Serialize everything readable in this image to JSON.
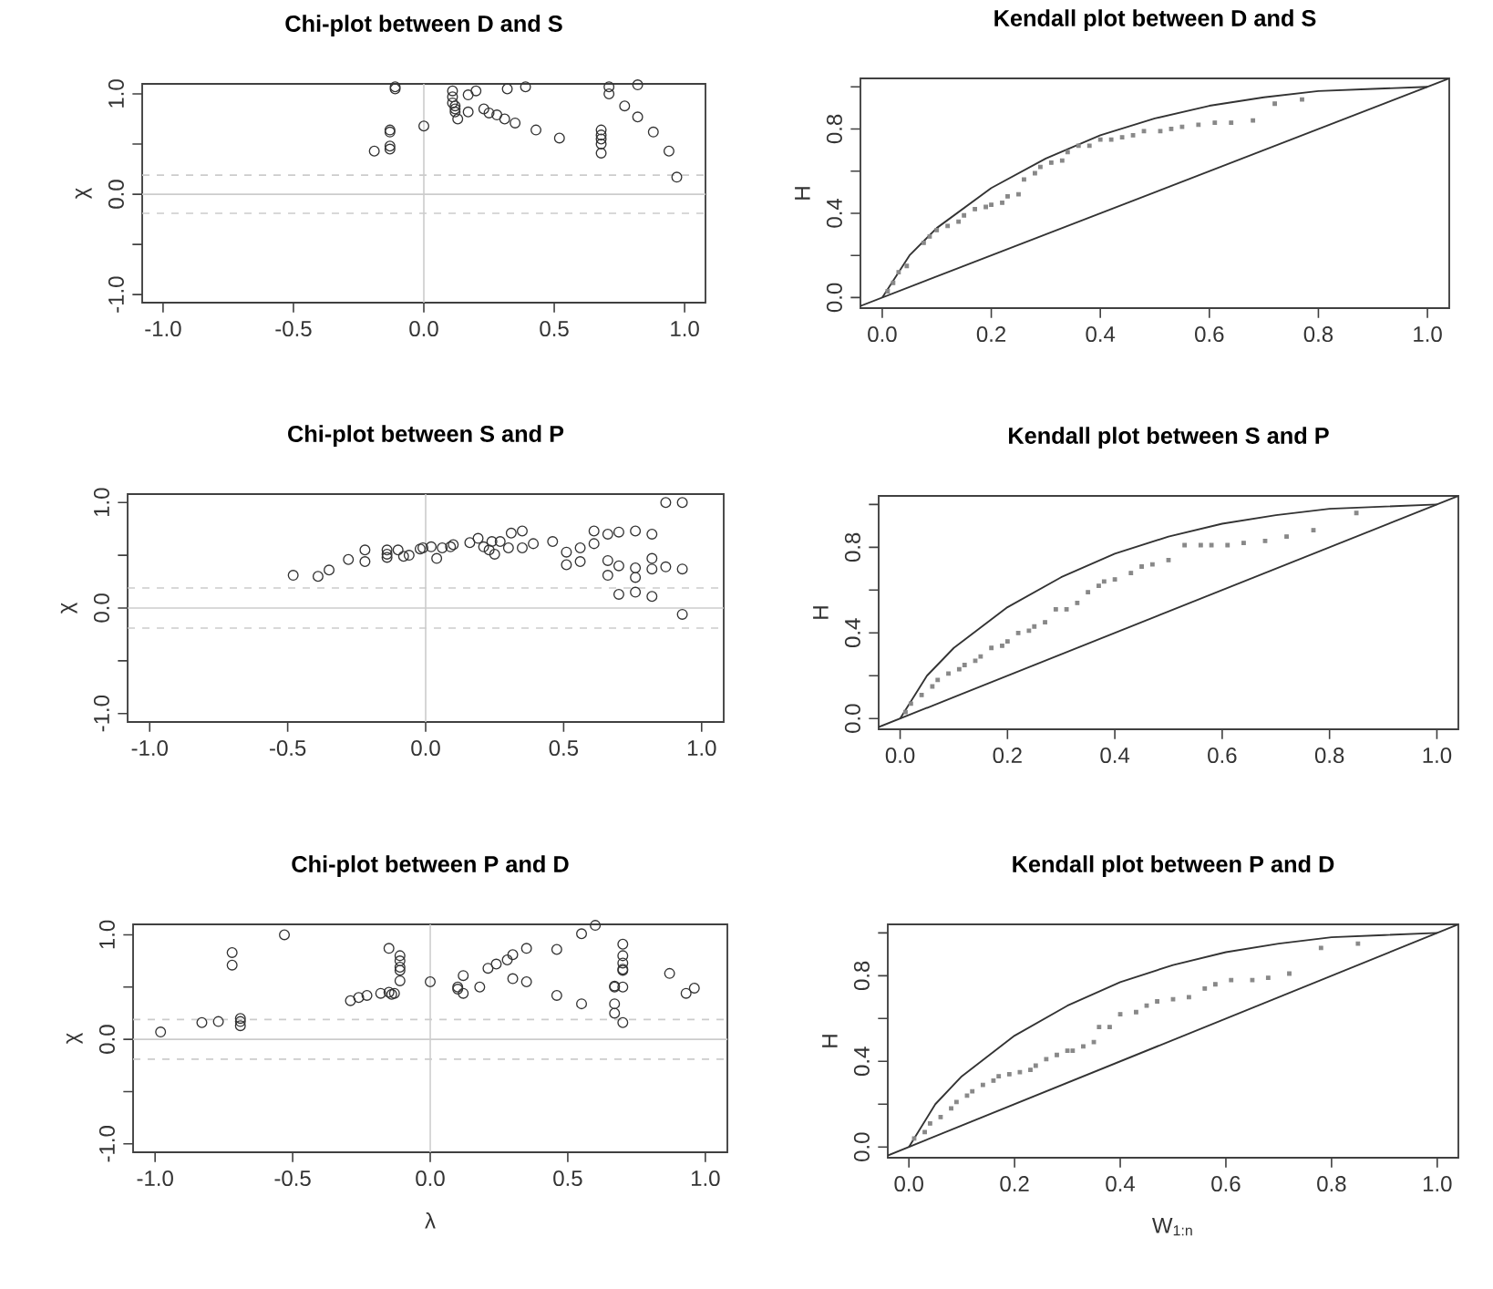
{
  "chart_data": [
    {
      "type": "scatter",
      "title": "Chi-plot between D and S",
      "ylabel": "χ",
      "xlim": [
        -1.08,
        1.08
      ],
      "ylim": [
        -1.08,
        1.1
      ],
      "xticks": [
        {
          "value": -1,
          "label": "-1.0"
        },
        {
          "value": -0.5,
          "label": "-0.5"
        },
        {
          "value": 0,
          "label": "0.0"
        },
        {
          "value": 0.5,
          "label": "0.5"
        },
        {
          "value": 1,
          "label": "1.0"
        }
      ],
      "yticks": [
        {
          "value": -1,
          "label": "-1.0"
        },
        {
          "value": -0.5,
          "label": null
        },
        {
          "value": 0,
          "label": "0.0"
        },
        {
          "value": 0.5,
          "label": null
        },
        {
          "value": 1,
          "label": "1.0"
        }
      ],
      "marker": "circle",
      "ref_lines": [
        {
          "axis": "y",
          "value": 0,
          "color": "#cccccc",
          "line_style": "solid"
        },
        {
          "axis": "y",
          "value": 0.19,
          "color": "#cccccc",
          "line_style": "dashed"
        },
        {
          "axis": "y",
          "value": -0.19,
          "color": "#cccccc",
          "line_style": "dashed"
        },
        {
          "axis": "x",
          "value": 0,
          "color": "#cccccc",
          "line_style": "solid"
        }
      ],
      "series": [
        {
          "color": "#333333",
          "x": [
            -0.19,
            -0.13,
            -0.13,
            -0.13,
            -0.13,
            -0.11,
            -0.11,
            0.0,
            0.11,
            0.11,
            0.11,
            0.12,
            0.12,
            0.12,
            0.13,
            0.17,
            0.17,
            0.2,
            0.23,
            0.25,
            0.28,
            0.31,
            0.35,
            0.32,
            0.39,
            0.43,
            0.52,
            0.68,
            0.68,
            0.68,
            0.68,
            0.68,
            0.71,
            0.71,
            0.77,
            0.82,
            0.82,
            0.88,
            0.94,
            0.97
          ],
          "values": [
            0.43,
            0.45,
            0.48,
            0.62,
            0.64,
            1.05,
            1.07,
            0.68,
            1.03,
            0.97,
            0.91,
            0.88,
            0.85,
            0.82,
            0.75,
            0.82,
            0.99,
            1.03,
            0.85,
            0.81,
            0.79,
            0.75,
            0.71,
            1.05,
            1.07,
            0.64,
            0.56,
            0.64,
            0.59,
            0.55,
            0.5,
            0.41,
            1.0,
            1.07,
            0.88,
            0.77,
            1.09,
            0.62,
            0.43,
            0.17
          ]
        }
      ]
    },
    {
      "type": "scatter",
      "title": "Kendall plot between D and S",
      "ylabel": "H",
      "xlim": [
        -0.04,
        1.04
      ],
      "ylim": [
        -0.05,
        1.04
      ],
      "xticks": [
        {
          "value": 0,
          "label": "0.0"
        },
        {
          "value": 0.2,
          "label": "0.2"
        },
        {
          "value": 0.4,
          "label": "0.4"
        },
        {
          "value": 0.6,
          "label": "0.6"
        },
        {
          "value": 0.8,
          "label": "0.8"
        },
        {
          "value": 1,
          "label": "1.0"
        }
      ],
      "yticks": [
        {
          "value": 0,
          "label": "0.0"
        },
        {
          "value": 0.2,
          "label": null
        },
        {
          "value": 0.4,
          "label": "0.4"
        },
        {
          "value": 0.6,
          "label": null
        },
        {
          "value": 0.8,
          "label": "0.8"
        },
        {
          "value": 1,
          "label": null
        }
      ],
      "series": [
        {
          "type": "line",
          "marker": "none",
          "color": "#333333",
          "x": [
            -0.04,
            1.04
          ],
          "values": [
            -0.04,
            1.04
          ]
        },
        {
          "type": "line",
          "marker": "none",
          "color": "#333333",
          "x": [
            0,
            0.05,
            0.1,
            0.2,
            0.3,
            0.4,
            0.5,
            0.6,
            0.7,
            0.8,
            0.9,
            1.0
          ],
          "values": [
            0,
            0.2,
            0.33,
            0.52,
            0.66,
            0.77,
            0.85,
            0.91,
            0.95,
            0.98,
            0.99,
            1.0
          ]
        },
        {
          "marker": "square",
          "color": "#888888",
          "x": [
            0.01,
            0.02,
            0.03,
            0.045,
            0.076,
            0.087,
            0.1,
            0.12,
            0.14,
            0.15,
            0.17,
            0.19,
            0.2,
            0.22,
            0.23,
            0.25,
            0.26,
            0.28,
            0.29,
            0.31,
            0.33,
            0.34,
            0.36,
            0.38,
            0.4,
            0.42,
            0.44,
            0.46,
            0.48,
            0.51,
            0.53,
            0.55,
            0.58,
            0.61,
            0.64,
            0.68,
            0.72,
            0.77
          ],
          "values": [
            0.03,
            0.07,
            0.12,
            0.15,
            0.26,
            0.29,
            0.32,
            0.34,
            0.36,
            0.39,
            0.42,
            0.43,
            0.44,
            0.45,
            0.48,
            0.49,
            0.56,
            0.59,
            0.62,
            0.64,
            0.65,
            0.69,
            0.72,
            0.72,
            0.75,
            0.75,
            0.76,
            0.77,
            0.79,
            0.79,
            0.8,
            0.81,
            0.82,
            0.83,
            0.83,
            0.84,
            0.92,
            0.94
          ]
        }
      ]
    },
    {
      "type": "scatter",
      "title": "Chi-plot between S and P",
      "ylabel": "χ",
      "xlim": [
        -1.08,
        1.08
      ],
      "ylim": [
        -1.08,
        1.08
      ],
      "xticks": [
        {
          "value": -1,
          "label": "-1.0"
        },
        {
          "value": -0.5,
          "label": "-0.5"
        },
        {
          "value": 0,
          "label": "0.0"
        },
        {
          "value": 0.5,
          "label": "0.5"
        },
        {
          "value": 1,
          "label": "1.0"
        }
      ],
      "yticks": [
        {
          "value": -1,
          "label": "-1.0"
        },
        {
          "value": -0.5,
          "label": null
        },
        {
          "value": 0,
          "label": "0.0"
        },
        {
          "value": 0.5,
          "label": null
        },
        {
          "value": 1,
          "label": "1.0"
        }
      ],
      "marker": "circle",
      "ref_lines": [
        {
          "axis": "y",
          "value": 0,
          "color": "#cccccc",
          "line_style": "solid"
        },
        {
          "axis": "y",
          "value": 0.19,
          "color": "#cccccc",
          "line_style": "dashed"
        },
        {
          "axis": "y",
          "value": -0.19,
          "color": "#cccccc",
          "line_style": "dashed"
        },
        {
          "axis": "x",
          "value": 0,
          "color": "#cccccc",
          "line_style": "solid"
        }
      ],
      "series": [
        {
          "color": "#333333",
          "x": [
            -0.48,
            -0.39,
            -0.35,
            -0.28,
            -0.22,
            -0.22,
            -0.14,
            -0.14,
            -0.14,
            -0.1,
            -0.08,
            -0.06,
            -0.02,
            -0.01,
            0.02,
            0.04,
            0.06,
            0.09,
            0.1,
            0.16,
            0.19,
            0.21,
            0.23,
            0.24,
            0.25,
            0.27,
            0.3,
            0.31,
            0.35,
            0.35,
            0.39,
            0.46,
            0.51,
            0.51,
            0.56,
            0.56,
            0.61,
            0.61,
            0.66,
            0.66,
            0.66,
            0.7,
            0.7,
            0.7,
            0.76,
            0.76,
            0.76,
            0.76,
            0.82,
            0.82,
            0.82,
            0.82,
            0.87,
            0.87,
            0.93,
            0.93,
            0.93
          ],
          "values": [
            0.31,
            0.3,
            0.36,
            0.46,
            0.55,
            0.44,
            0.51,
            0.55,
            0.48,
            0.55,
            0.49,
            0.5,
            0.56,
            0.57,
            0.58,
            0.47,
            0.57,
            0.58,
            0.6,
            0.62,
            0.66,
            0.58,
            0.55,
            0.63,
            0.51,
            0.63,
            0.57,
            0.71,
            0.73,
            0.57,
            0.61,
            0.63,
            0.53,
            0.41,
            0.57,
            0.44,
            0.73,
            0.61,
            0.7,
            0.45,
            0.31,
            0.72,
            0.4,
            0.13,
            0.73,
            0.38,
            0.29,
            0.15,
            0.7,
            0.47,
            0.37,
            0.11,
            1.0,
            0.39,
            1.0,
            0.37,
            -0.06
          ]
        }
      ]
    },
    {
      "type": "scatter",
      "title": "Kendall plot between S and P",
      "ylabel": "H",
      "xlim": [
        -0.04,
        1.04
      ],
      "ylim": [
        -0.05,
        1.04
      ],
      "xticks": [
        {
          "value": 0,
          "label": "0.0"
        },
        {
          "value": 0.2,
          "label": "0.2"
        },
        {
          "value": 0.4,
          "label": "0.4"
        },
        {
          "value": 0.6,
          "label": "0.6"
        },
        {
          "value": 0.8,
          "label": "0.8"
        },
        {
          "value": 1,
          "label": "1.0"
        }
      ],
      "yticks": [
        {
          "value": 0,
          "label": "0.0"
        },
        {
          "value": 0.2,
          "label": null
        },
        {
          "value": 0.4,
          "label": "0.4"
        },
        {
          "value": 0.6,
          "label": null
        },
        {
          "value": 0.8,
          "label": "0.8"
        },
        {
          "value": 1,
          "label": null
        }
      ],
      "series": [
        {
          "type": "line",
          "marker": "none",
          "color": "#333333",
          "x": [
            -0.04,
            1.04
          ],
          "values": [
            -0.04,
            1.04
          ]
        },
        {
          "type": "line",
          "marker": "none",
          "color": "#333333",
          "x": [
            0,
            0.05,
            0.1,
            0.2,
            0.3,
            0.4,
            0.5,
            0.6,
            0.7,
            0.8,
            0.9,
            1.0
          ],
          "values": [
            0,
            0.2,
            0.33,
            0.52,
            0.66,
            0.77,
            0.85,
            0.91,
            0.95,
            0.98,
            0.99,
            1.0
          ]
        },
        {
          "marker": "square",
          "color": "#888888",
          "x": [
            0.01,
            0.02,
            0.04,
            0.06,
            0.07,
            0.09,
            0.11,
            0.12,
            0.14,
            0.15,
            0.17,
            0.19,
            0.2,
            0.22,
            0.24,
            0.25,
            0.27,
            0.29,
            0.31,
            0.33,
            0.35,
            0.37,
            0.38,
            0.4,
            0.43,
            0.45,
            0.47,
            0.5,
            0.53,
            0.56,
            0.58,
            0.61,
            0.64,
            0.68,
            0.72,
            0.77,
            0.85
          ],
          "values": [
            0.03,
            0.07,
            0.11,
            0.15,
            0.18,
            0.21,
            0.23,
            0.25,
            0.27,
            0.29,
            0.33,
            0.34,
            0.36,
            0.4,
            0.41,
            0.43,
            0.45,
            0.51,
            0.51,
            0.54,
            0.59,
            0.62,
            0.64,
            0.65,
            0.68,
            0.71,
            0.72,
            0.74,
            0.81,
            0.81,
            0.81,
            0.81,
            0.82,
            0.83,
            0.85,
            0.88,
            0.96
          ]
        }
      ]
    },
    {
      "type": "scatter",
      "title": "Chi-plot between P and D",
      "xlabel": "λ",
      "ylabel": "χ",
      "xlim": [
        -1.08,
        1.08
      ],
      "ylim": [
        -1.08,
        1.1
      ],
      "xticks": [
        {
          "value": -1,
          "label": "-1.0"
        },
        {
          "value": -0.5,
          "label": "-0.5"
        },
        {
          "value": 0,
          "label": "0.0"
        },
        {
          "value": 0.5,
          "label": "0.5"
        },
        {
          "value": 1,
          "label": "1.0"
        }
      ],
      "yticks": [
        {
          "value": -1,
          "label": "-1.0"
        },
        {
          "value": -0.5,
          "label": null
        },
        {
          "value": 0,
          "label": "0.0"
        },
        {
          "value": 0.5,
          "label": null
        },
        {
          "value": 1,
          "label": "1.0"
        }
      ],
      "marker": "circle",
      "ref_lines": [
        {
          "axis": "y",
          "value": 0,
          "color": "#cccccc",
          "line_style": "solid"
        },
        {
          "axis": "y",
          "value": 0.19,
          "color": "#cccccc",
          "line_style": "dashed"
        },
        {
          "axis": "y",
          "value": -0.19,
          "color": "#cccccc",
          "line_style": "dashed"
        },
        {
          "axis": "x",
          "value": 0,
          "color": "#cccccc",
          "line_style": "solid"
        }
      ],
      "series": [
        {
          "color": "#333333",
          "x": [
            -0.98,
            -0.83,
            -0.77,
            -0.72,
            -0.72,
            -0.69,
            -0.69,
            -0.69,
            -0.53,
            -0.29,
            -0.26,
            -0.23,
            -0.18,
            -0.15,
            -0.15,
            -0.14,
            -0.13,
            -0.11,
            -0.11,
            -0.11,
            -0.11,
            -0.11,
            0.0,
            0.1,
            0.1,
            0.12,
            0.12,
            0.18,
            0.21,
            0.24,
            0.28,
            0.3,
            0.3,
            0.35,
            0.35,
            0.46,
            0.46,
            0.55,
            0.55,
            0.6,
            0.67,
            0.67,
            0.67,
            0.67,
            0.7,
            0.7,
            0.7,
            0.7,
            0.7,
            0.7,
            0.7,
            0.87,
            0.93,
            0.96
          ],
          "values": [
            0.07,
            0.16,
            0.17,
            0.83,
            0.71,
            0.2,
            0.17,
            0.13,
            1.0,
            0.37,
            0.4,
            0.42,
            0.44,
            0.45,
            0.87,
            0.43,
            0.44,
            0.8,
            0.75,
            0.69,
            0.66,
            0.56,
            0.55,
            0.5,
            0.48,
            0.61,
            0.44,
            0.5,
            0.68,
            0.72,
            0.76,
            0.81,
            0.58,
            0.87,
            0.55,
            0.86,
            0.42,
            1.01,
            0.34,
            1.09,
            0.51,
            0.5,
            0.34,
            0.25,
            0.91,
            0.8,
            0.73,
            0.67,
            0.66,
            0.5,
            0.16,
            0.63,
            0.44,
            0.49
          ]
        }
      ]
    },
    {
      "type": "scatter",
      "title": "Kendall plot between P and D",
      "xlabel": "W$_{1:n}$",
      "ylabel": "H",
      "xlim": [
        -0.04,
        1.04
      ],
      "ylim": [
        -0.05,
        1.04
      ],
      "xticks": [
        {
          "value": 0,
          "label": "0.0"
        },
        {
          "value": 0.2,
          "label": "0.2"
        },
        {
          "value": 0.4,
          "label": "0.4"
        },
        {
          "value": 0.6,
          "label": "0.6"
        },
        {
          "value": 0.8,
          "label": "0.8"
        },
        {
          "value": 1,
          "label": "1.0"
        }
      ],
      "yticks": [
        {
          "value": 0,
          "label": "0.0"
        },
        {
          "value": 0.2,
          "label": null
        },
        {
          "value": 0.4,
          "label": "0.4"
        },
        {
          "value": 0.6,
          "label": null
        },
        {
          "value": 0.8,
          "label": "0.8"
        },
        {
          "value": 1,
          "label": null
        }
      ],
      "series": [
        {
          "type": "line",
          "marker": "none",
          "color": "#333333",
          "x": [
            -0.04,
            1.04
          ],
          "values": [
            -0.04,
            1.04
          ]
        },
        {
          "type": "line",
          "marker": "none",
          "color": "#333333",
          "x": [
            0,
            0.05,
            0.1,
            0.2,
            0.3,
            0.4,
            0.5,
            0.6,
            0.7,
            0.8,
            0.9,
            1.0
          ],
          "values": [
            0,
            0.2,
            0.33,
            0.52,
            0.66,
            0.77,
            0.85,
            0.91,
            0.95,
            0.98,
            0.99,
            1.0
          ]
        },
        {
          "marker": "square",
          "color": "#888888",
          "x": [
            0.01,
            0.03,
            0.04,
            0.06,
            0.08,
            0.09,
            0.11,
            0.12,
            0.14,
            0.16,
            0.17,
            0.19,
            0.21,
            0.23,
            0.24,
            0.26,
            0.28,
            0.3,
            0.31,
            0.33,
            0.35,
            0.36,
            0.38,
            0.4,
            0.43,
            0.45,
            0.47,
            0.5,
            0.53,
            0.56,
            0.58,
            0.61,
            0.65,
            0.68,
            0.72,
            0.78,
            0.85
          ],
          "values": [
            0.04,
            0.07,
            0.11,
            0.14,
            0.18,
            0.21,
            0.24,
            0.26,
            0.29,
            0.31,
            0.33,
            0.34,
            0.35,
            0.36,
            0.38,
            0.41,
            0.43,
            0.45,
            0.45,
            0.47,
            0.49,
            0.56,
            0.56,
            0.62,
            0.63,
            0.66,
            0.68,
            0.69,
            0.7,
            0.74,
            0.76,
            0.78,
            0.78,
            0.79,
            0.81,
            0.93,
            0.95
          ]
        }
      ]
    }
  ]
}
